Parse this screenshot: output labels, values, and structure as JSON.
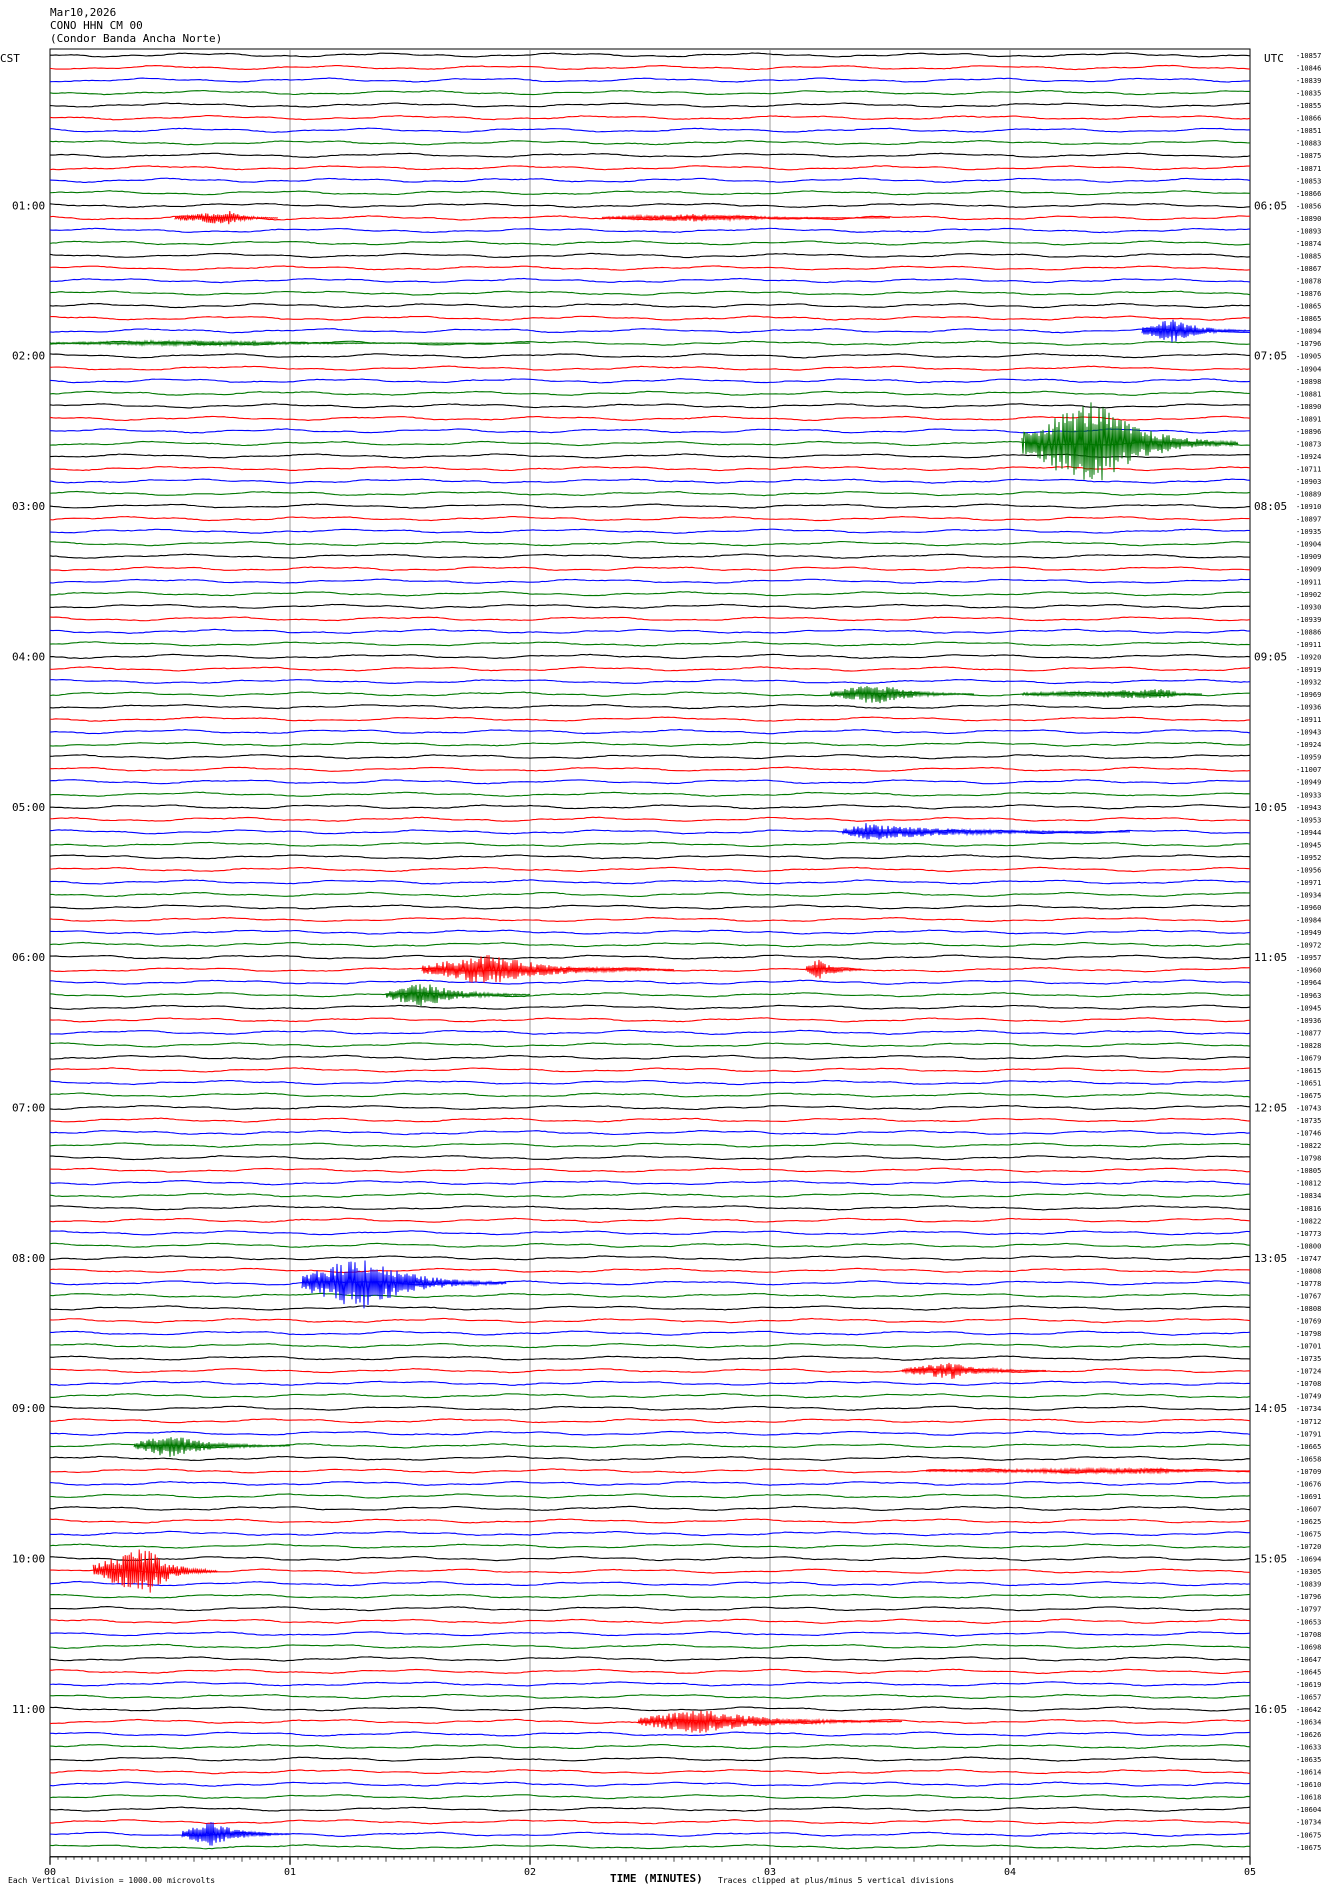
{
  "header": {
    "date": "Mar10,2026",
    "station": "CONO HHN CM 00",
    "site": "(Condor Banda Ancha Norte)"
  },
  "left_tz": "CST",
  "right_tz": "UTC",
  "footer": {
    "xlabel": "TIME (MINUTES)",
    "scale_note": "Each Vertical Division = 1000.00 microvolts",
    "clip_note": "Traces clipped at plus/minus 5 vertical divisions"
  },
  "colors": {
    "black": "#000000",
    "red": "#ff0000",
    "blue": "#0000ff",
    "green": "#007700",
    "grid": "#808080"
  },
  "chart_data": {
    "type": "line",
    "subtype": "helicorder",
    "trace_count": 144,
    "trace_minutes": 5,
    "color_cycle": [
      "black",
      "red",
      "blue",
      "green"
    ],
    "xlim": [
      0,
      5
    ],
    "x_ticks": [
      "00",
      "01",
      "02",
      "03",
      "04",
      "05"
    ],
    "cst_labels": [
      {
        "trace": 12,
        "label": "01:00"
      },
      {
        "trace": 24,
        "label": "02:00"
      },
      {
        "trace": 36,
        "label": "03:00"
      },
      {
        "trace": 48,
        "label": "04:00"
      },
      {
        "trace": 60,
        "label": "05:00"
      },
      {
        "trace": 72,
        "label": "06:00"
      },
      {
        "trace": 84,
        "label": "07:00"
      },
      {
        "trace": 96,
        "label": "08:00"
      },
      {
        "trace": 108,
        "label": "09:00"
      },
      {
        "trace": 120,
        "label": "10:00"
      },
      {
        "trace": 132,
        "label": "11:00"
      }
    ],
    "utc_labels": [
      {
        "trace": 12,
        "label": "06:05"
      },
      {
        "trace": 24,
        "label": "07:05"
      },
      {
        "trace": 36,
        "label": "08:05"
      },
      {
        "trace": 48,
        "label": "09:05"
      },
      {
        "trace": 60,
        "label": "10:05"
      },
      {
        "trace": 72,
        "label": "11:05"
      },
      {
        "trace": 84,
        "label": "12:05"
      },
      {
        "trace": 96,
        "label": "13:05"
      },
      {
        "trace": 108,
        "label": "14:05"
      },
      {
        "trace": 120,
        "label": "15:05"
      },
      {
        "trace": 132,
        "label": "16:05"
      }
    ],
    "trace_offsets": [
      "-10857",
      "-10846",
      "-10839",
      "-10835",
      "-10855",
      "-10866",
      "-10851",
      "-10883",
      "-10875",
      "-10871",
      "-10853",
      "-10866",
      "-10856",
      "-10890",
      "-10893",
      "-10874",
      "-10885",
      "-10867",
      "-10878",
      "-10876",
      "-10865",
      "-10865",
      "-10894",
      "-10796",
      "-10905",
      "-10904",
      "-10898",
      "-10881",
      "-10890",
      "-10891",
      "-10896",
      "-10873",
      "-10924",
      "-10711",
      "-10903",
      "-10889",
      "-10910",
      "-10897",
      "-10935",
      "-10904",
      "-10909",
      "-10909",
      "-10911",
      "-10902",
      "-10930",
      "-10939",
      "-10886",
      "-10911",
      "-10920",
      "-10919",
      "-10932",
      "-10969",
      "-10936",
      "-10911",
      "-10943",
      "-10924",
      "-10959",
      "-11007",
      "-10949",
      "-10933",
      "-10943",
      "-10953",
      "-10944",
      "-10945",
      "-10952",
      "-10956",
      "-10971",
      "-10934",
      "-10960",
      "-10984",
      "-10949",
      "-10972",
      "-10957",
      "-10960",
      "-10964",
      "-10963",
      "-10945",
      "-10936",
      "-10877",
      "-10828",
      "-10679",
      "-10615",
      "-10651",
      "-10675",
      "-10743",
      "-10735",
      "-10746",
      "-10822",
      "-10798",
      "-10805",
      "-10812",
      "-10834",
      "-10816",
      "-10822",
      "-10773",
      "-10800",
      "-10747",
      "-10808",
      "-10778",
      "-10767",
      "-10808",
      "-10769",
      "-10798",
      "-10701",
      "-10735",
      "-10724",
      "-10708",
      "-10749",
      "-10734",
      "-10712",
      "-10791",
      "-10665",
      "-10658",
      "-10709",
      "-10676",
      "-10691",
      "-10607",
      "-10625",
      "-10675",
      "-10720",
      "-10694",
      "-10305",
      "-10839",
      "-10796",
      "-10797",
      "-10653",
      "-10708",
      "-10698",
      "-10647",
      "-10645",
      "-10619",
      "-10657",
      "-10642",
      "-10634",
      "-10626",
      "-10633",
      "-10635",
      "-10614",
      "-10610",
      "-10618",
      "-10604",
      "-10734",
      "-10675",
      "-10675"
    ],
    "events": [
      {
        "trace": 13,
        "start": 0.52,
        "end": 0.95,
        "amp": 7,
        "peak": 0.75
      },
      {
        "trace": 13,
        "start": 2.3,
        "end": 3.5,
        "amp": 4,
        "peak": 2.7
      },
      {
        "trace": 22,
        "start": 4.55,
        "end": 5.0,
        "amp": 13,
        "peak": 4.68
      },
      {
        "trace": 23,
        "start": 0.0,
        "end": 2.0,
        "amp": 3,
        "peak": 0.6
      },
      {
        "trace": 31,
        "start": 4.05,
        "end": 4.95,
        "amp": 45,
        "peak": 4.35
      },
      {
        "trace": 51,
        "start": 3.25,
        "end": 3.85,
        "amp": 11,
        "peak": 3.45
      },
      {
        "trace": 51,
        "start": 4.05,
        "end": 4.8,
        "amp": 5,
        "peak": 4.65
      },
      {
        "trace": 62,
        "start": 3.3,
        "end": 4.5,
        "amp": 9,
        "peak": 3.4
      },
      {
        "trace": 73,
        "start": 1.55,
        "end": 2.6,
        "amp": 16,
        "peak": 1.82
      },
      {
        "trace": 73,
        "start": 3.15,
        "end": 3.4,
        "amp": 11,
        "peak": 3.2
      },
      {
        "trace": 75,
        "start": 1.4,
        "end": 2.0,
        "amp": 13,
        "peak": 1.55
      },
      {
        "trace": 98,
        "start": 1.05,
        "end": 1.9,
        "amp": 28,
        "peak": 1.3
      },
      {
        "trace": 105,
        "start": 3.55,
        "end": 4.15,
        "amp": 9,
        "peak": 3.75
      },
      {
        "trace": 111,
        "start": 0.35,
        "end": 1.0,
        "amp": 12,
        "peak": 0.5
      },
      {
        "trace": 113,
        "start": 3.65,
        "end": 5.0,
        "amp": 3,
        "peak": 4.6
      },
      {
        "trace": 121,
        "start": 0.18,
        "end": 0.7,
        "amp": 26,
        "peak": 0.4
      },
      {
        "trace": 133,
        "start": 2.45,
        "end": 3.55,
        "amp": 13,
        "peak": 2.7
      },
      {
        "trace": 142,
        "start": 0.55,
        "end": 1.0,
        "amp": 13,
        "peak": 0.68
      }
    ]
  }
}
